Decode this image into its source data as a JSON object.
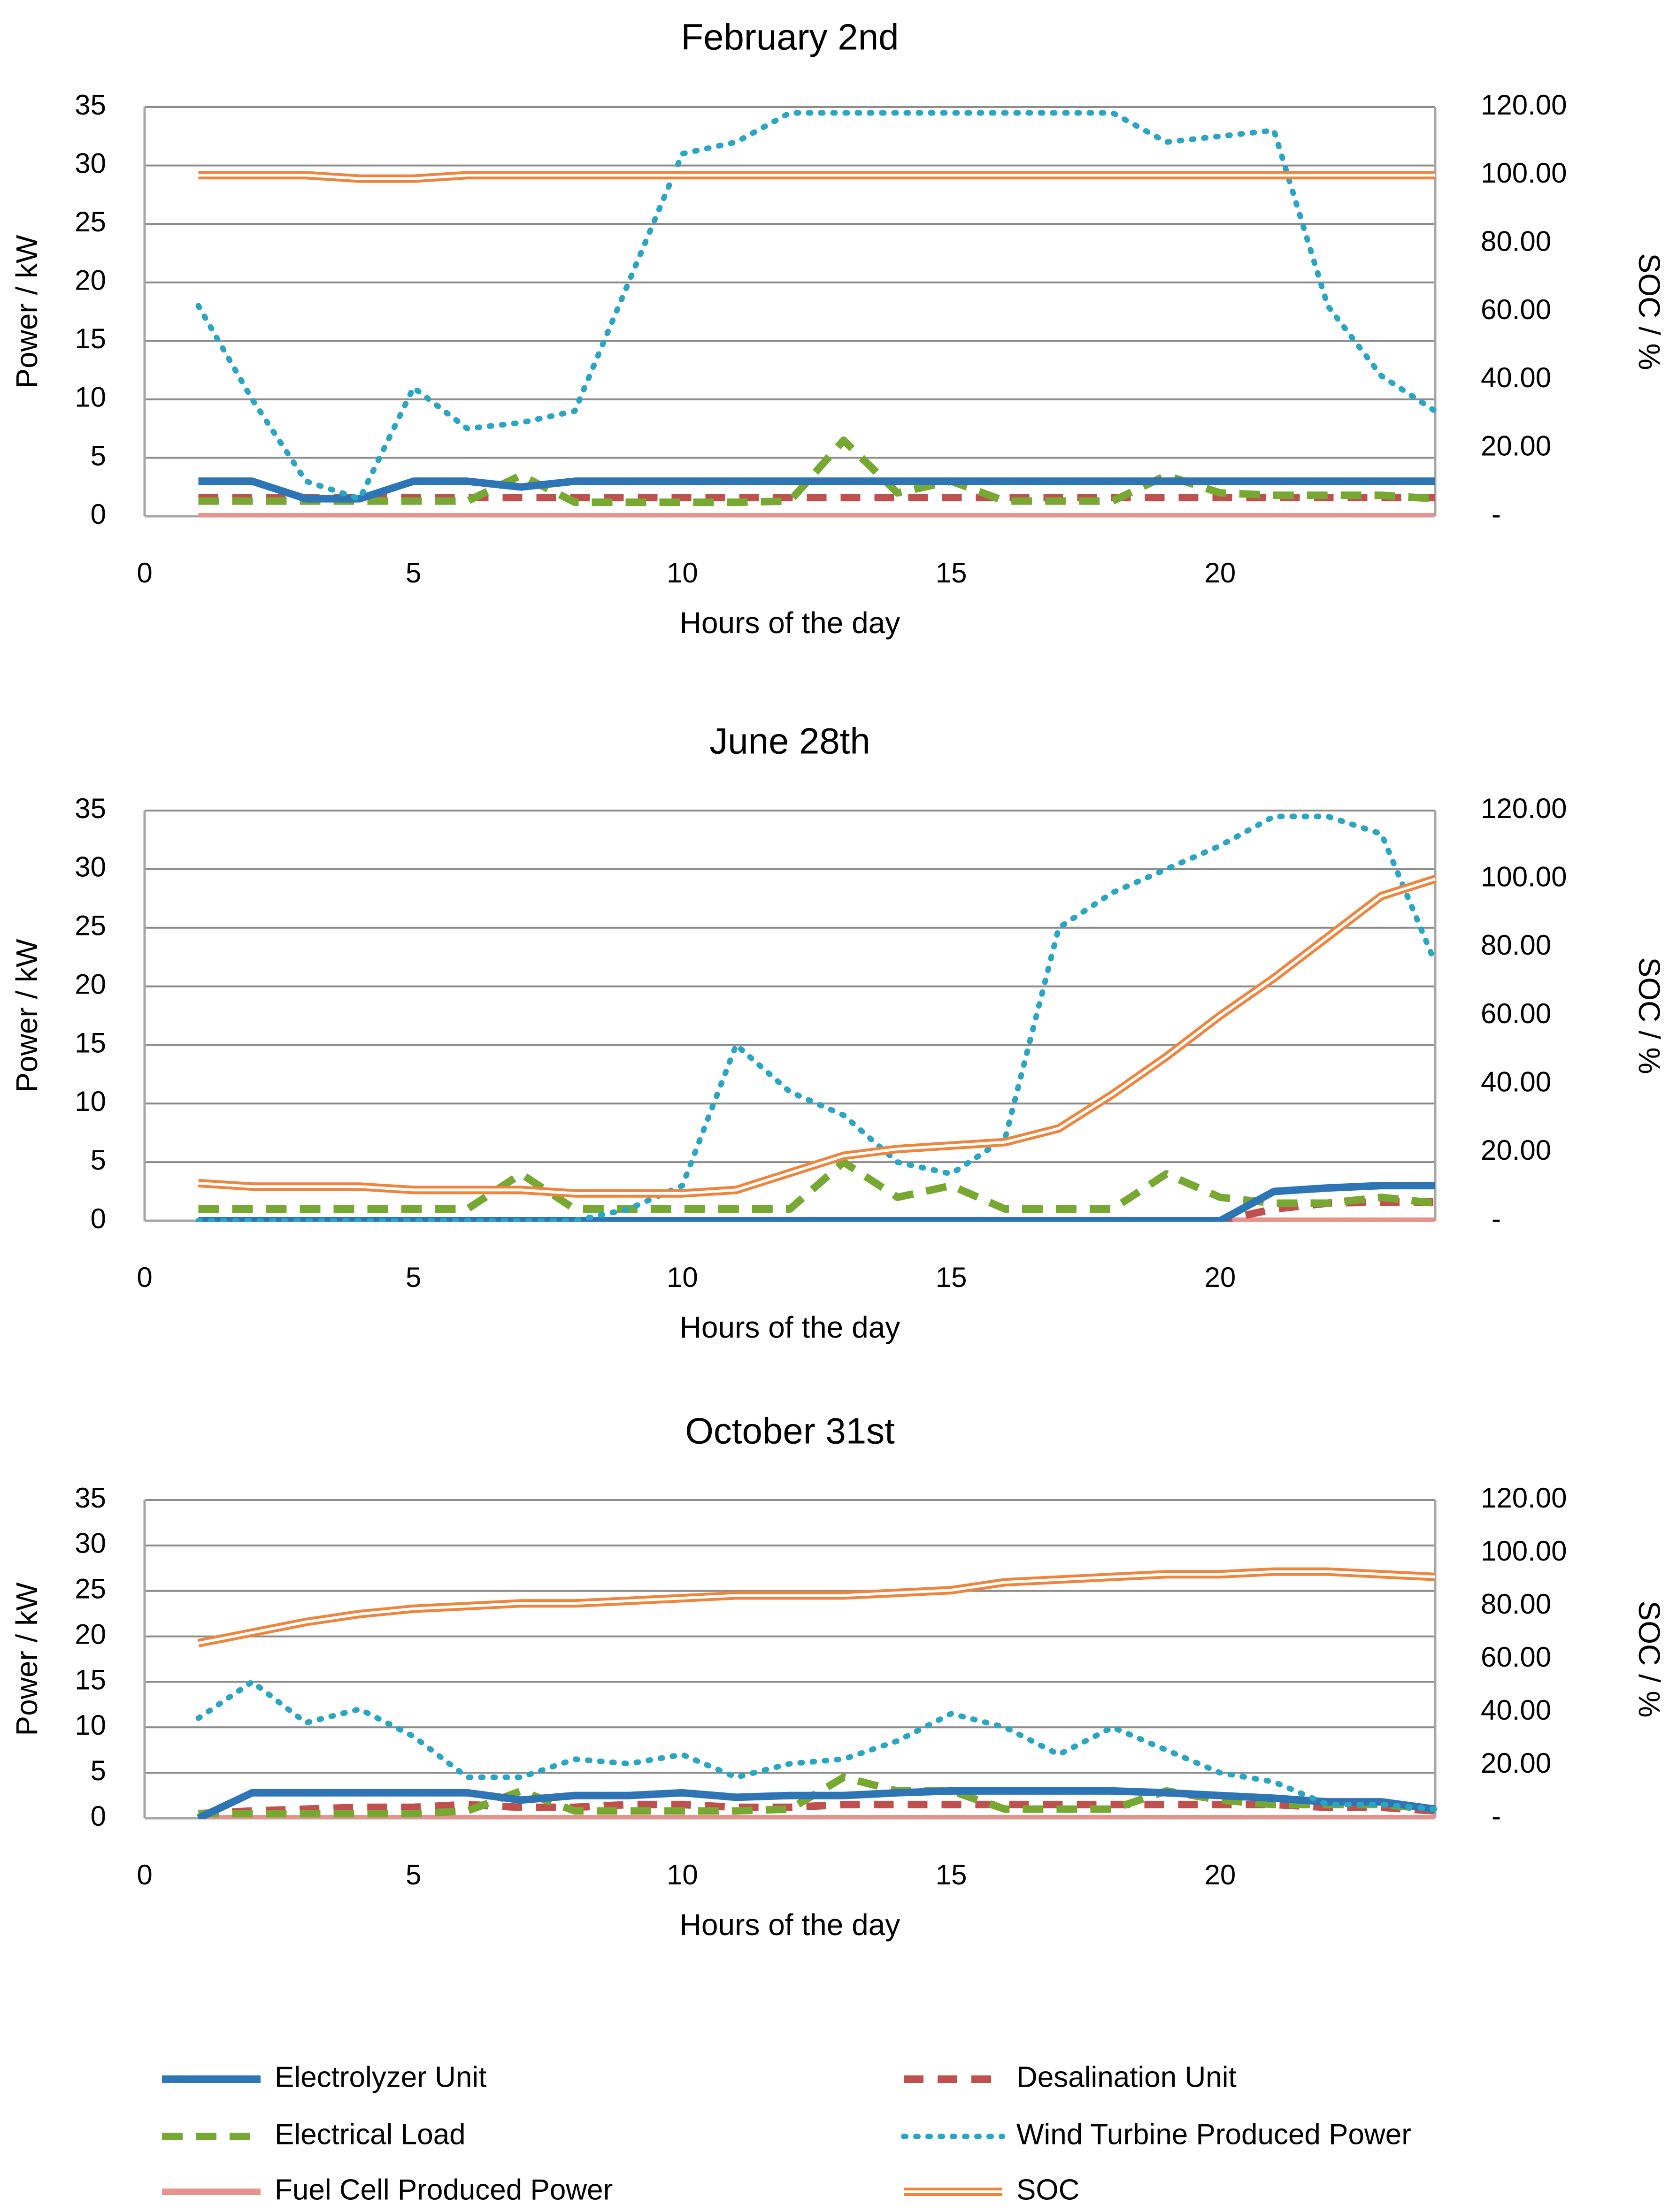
{
  "chart_data": [
    {
      "type": "line",
      "title": "February 2nd",
      "xlabel": "Hours of the day",
      "ylabel": "Power / kW",
      "y2label": "SOC / %",
      "xlim": [
        0,
        24
      ],
      "ylim": [
        0,
        35
      ],
      "y2lim": [
        0,
        120
      ],
      "xticks": [
        "0",
        "5",
        "10",
        "15",
        "20"
      ],
      "yticks": [
        "0",
        "5",
        "10",
        "15",
        "20",
        "25",
        "30",
        "35"
      ],
      "y2ticks": [
        "-",
        "20.00",
        "40.00",
        "60.00",
        "80.00",
        "100.00",
        "120.00"
      ],
      "grid": "horizontal",
      "x": [
        1,
        2,
        3,
        4,
        5,
        6,
        7,
        8,
        9,
        10,
        11,
        12,
        13,
        14,
        15,
        16,
        17,
        18,
        19,
        20,
        21,
        22,
        23,
        24
      ],
      "series": [
        {
          "name": "Electrolyzer Unit",
          "axis": "left",
          "values": [
            3,
            3,
            1.5,
            1.5,
            3,
            3,
            2.5,
            3,
            3,
            3,
            3,
            3,
            3,
            3,
            3,
            3,
            3,
            3,
            3,
            3,
            3,
            3,
            3,
            3
          ]
        },
        {
          "name": "Desalination Unit",
          "axis": "left",
          "values": [
            1.6,
            1.6,
            1.6,
            1.6,
            1.6,
            1.6,
            1.6,
            1.6,
            1.6,
            1.6,
            1.6,
            1.6,
            1.6,
            1.6,
            1.6,
            1.6,
            1.6,
            1.6,
            1.6,
            1.6,
            1.6,
            1.6,
            1.6,
            1.6
          ]
        },
        {
          "name": "Electrical Load",
          "axis": "left",
          "values": [
            1.3,
            1.3,
            1.3,
            1.3,
            1.3,
            1.3,
            3.5,
            1.2,
            1.2,
            1.2,
            1.2,
            1.3,
            6.5,
            2,
            3,
            1.3,
            1.3,
            1.3,
            3.5,
            2,
            1.8,
            1.8,
            1.8,
            1.5
          ]
        },
        {
          "name": "Wind Turbine Produced Power",
          "axis": "left",
          "values": [
            18,
            10,
            3,
            1.5,
            11,
            7.5,
            8,
            9,
            20,
            31,
            32,
            34.5,
            34.5,
            34.5,
            34.5,
            34.5,
            34.5,
            34.5,
            32,
            32.5,
            33,
            18,
            12,
            9
          ]
        },
        {
          "name": "Fuel Cell Produced Power",
          "axis": "left",
          "values": [
            0,
            0,
            0,
            0,
            0,
            0,
            0,
            0,
            0,
            0,
            0,
            0,
            0,
            0,
            0,
            0,
            0,
            0,
            0,
            0,
            0,
            0,
            0,
            0
          ]
        },
        {
          "name": "SOC",
          "axis": "right",
          "values": [
            100,
            100,
            100,
            99,
            99,
            100,
            100,
            100,
            100,
            100,
            100,
            100,
            100,
            100,
            100,
            100,
            100,
            100,
            100,
            100,
            100,
            100,
            100,
            100
          ]
        }
      ]
    },
    {
      "type": "line",
      "title": "June 28th",
      "xlabel": "Hours of the day",
      "ylabel": "Power / kW",
      "y2label": "SOC / %",
      "xlim": [
        0,
        24
      ],
      "ylim": [
        0,
        35
      ],
      "y2lim": [
        0,
        120
      ],
      "xticks": [
        "0",
        "5",
        "10",
        "15",
        "20"
      ],
      "yticks": [
        "0",
        "5",
        "10",
        "15",
        "20",
        "25",
        "30",
        "35"
      ],
      "y2ticks": [
        "-",
        "20.00",
        "40.00",
        "60.00",
        "80.00",
        "100.00",
        "120.00"
      ],
      "grid": "horizontal",
      "x": [
        1,
        2,
        3,
        4,
        5,
        6,
        7,
        8,
        9,
        10,
        11,
        12,
        13,
        14,
        15,
        16,
        17,
        18,
        19,
        20,
        21,
        22,
        23,
        24
      ],
      "series": [
        {
          "name": "Electrolyzer Unit",
          "axis": "left",
          "values": [
            0,
            0,
            0,
            0,
            0,
            0,
            0,
            0,
            0,
            0,
            0,
            0,
            0,
            0,
            0,
            0,
            0,
            0,
            0,
            0,
            2.5,
            2.8,
            3,
            3
          ]
        },
        {
          "name": "Desalination Unit",
          "axis": "left",
          "values": [
            0,
            0,
            0,
            0,
            0,
            0,
            0,
            0,
            0,
            0,
            0,
            0,
            0,
            0,
            0,
            0,
            0,
            0,
            0,
            0,
            1,
            1.5,
            1.6,
            1.6
          ]
        },
        {
          "name": "Electrical Load",
          "axis": "left",
          "values": [
            1,
            1,
            1,
            1,
            1,
            1,
            4,
            1,
            1,
            1,
            1,
            1,
            5,
            2,
            3,
            1,
            1,
            1,
            4,
            2,
            1.5,
            1.5,
            2,
            1.5
          ]
        },
        {
          "name": "Wind Turbine Produced Power",
          "axis": "left",
          "values": [
            0,
            0,
            0,
            0,
            0,
            0,
            0,
            0,
            1,
            3,
            15,
            11,
            9,
            5,
            4,
            7,
            25,
            28,
            30,
            32,
            34.5,
            34.5,
            33,
            22
          ]
        },
        {
          "name": "Fuel Cell Produced Power",
          "axis": "left",
          "values": [
            0,
            0,
            0,
            0,
            0,
            0,
            0,
            0,
            0,
            0,
            0,
            0,
            0,
            0,
            0,
            0,
            0,
            0,
            0,
            0,
            0,
            0,
            0,
            0
          ]
        },
        {
          "name": "SOC",
          "axis": "right",
          "values": [
            11,
            10,
            10,
            10,
            9,
            9,
            9,
            8,
            8,
            8,
            9,
            14,
            19,
            21,
            22,
            23,
            27,
            37,
            48,
            60,
            71,
            83,
            95,
            100
          ]
        }
      ]
    },
    {
      "type": "line",
      "title": "October 31st",
      "xlabel": "Hours of the day",
      "ylabel": "Power / kW",
      "y2label": "SOC / %",
      "xlim": [
        0,
        24
      ],
      "ylim": [
        0,
        35
      ],
      "y2lim": [
        0,
        120
      ],
      "xticks": [
        "0",
        "5",
        "10",
        "15",
        "20"
      ],
      "yticks": [
        "0",
        "5",
        "10",
        "15",
        "20",
        "25",
        "30",
        "35"
      ],
      "y2ticks": [
        "-",
        "20.00",
        "40.00",
        "60.00",
        "80.00",
        "100.00",
        "120.00"
      ],
      "grid": "horizontal",
      "x": [
        1,
        2,
        3,
        4,
        5,
        6,
        7,
        8,
        9,
        10,
        11,
        12,
        13,
        14,
        15,
        16,
        17,
        18,
        19,
        20,
        21,
        22,
        23,
        24
      ],
      "series": [
        {
          "name": "Electrolyzer Unit",
          "axis": "left",
          "values": [
            0,
            2.8,
            2.8,
            2.8,
            2.8,
            2.8,
            2,
            2.5,
            2.5,
            2.8,
            2.3,
            2.5,
            2.5,
            2.8,
            3,
            3,
            3,
            3,
            2.8,
            2.5,
            2.2,
            1.8,
            1.8,
            1
          ]
        },
        {
          "name": "Desalination Unit",
          "axis": "left",
          "values": [
            0.5,
            0.8,
            1,
            1.2,
            1.2,
            1.5,
            1.2,
            1.2,
            1.5,
            1.5,
            1.2,
            1.2,
            1.5,
            1.5,
            1.5,
            1.5,
            1.5,
            1.5,
            1.5,
            1.5,
            1.5,
            1.2,
            1.2,
            0.8
          ]
        },
        {
          "name": "Electrical Load",
          "axis": "left",
          "values": [
            0.5,
            0.5,
            0.5,
            0.5,
            0.5,
            0.8,
            3,
            0.8,
            0.8,
            0.8,
            0.8,
            1,
            4.5,
            3,
            3,
            1,
            1,
            1,
            3,
            2,
            1.5,
            1.5,
            1.5,
            1
          ]
        },
        {
          "name": "Wind Turbine Produced Power",
          "axis": "left",
          "values": [
            11,
            15,
            10.5,
            12,
            9,
            4.5,
            4.5,
            6.5,
            6,
            7,
            4.5,
            6,
            6.5,
            8.5,
            11.5,
            10,
            7,
            10,
            7.5,
            5,
            4,
            1.5,
            1.5,
            1
          ]
        },
        {
          "name": "Fuel Cell Produced Power",
          "axis": "left",
          "values": [
            0,
            0,
            0,
            0,
            0,
            0,
            0,
            0,
            0,
            0,
            0,
            0,
            0,
            0,
            0,
            0,
            0,
            0,
            0,
            0,
            0,
            0,
            0,
            0
          ]
        },
        {
          "name": "SOC",
          "axis": "right",
          "values": [
            66,
            70,
            74,
            77,
            79,
            80,
            81,
            81,
            82,
            83,
            84,
            84,
            84,
            85,
            86,
            89,
            90,
            91,
            92,
            92,
            93,
            93,
            92,
            91
          ]
        }
      ]
    }
  ],
  "legend": [
    {
      "name": "Electrolyzer Unit",
      "label": "Electrolyzer Unit"
    },
    {
      "name": "Desalination Unit",
      "label": "Desalination Unit"
    },
    {
      "name": "Electrical Load",
      "label": "Electrical Load"
    },
    {
      "name": "Wind Turbine Produced Power",
      "label": "Wind Turbine Produced Power"
    },
    {
      "name": "Fuel Cell Produced Power",
      "label": "Fuel Cell Produced Power"
    },
    {
      "name": "SOC",
      "label": "SOC"
    }
  ],
  "colors": {
    "Electrolyzer Unit": "#2e75b6",
    "Desalination Unit": "#c0504d",
    "Electrical Load": "#77a832",
    "Wind Turbine Produced Power": "#2aa5c2",
    "Fuel Cell Produced Power": "#e6938d",
    "SOC": "#f0843c",
    "grid": "#8c8c8c",
    "frame": "#a6a6a6"
  }
}
